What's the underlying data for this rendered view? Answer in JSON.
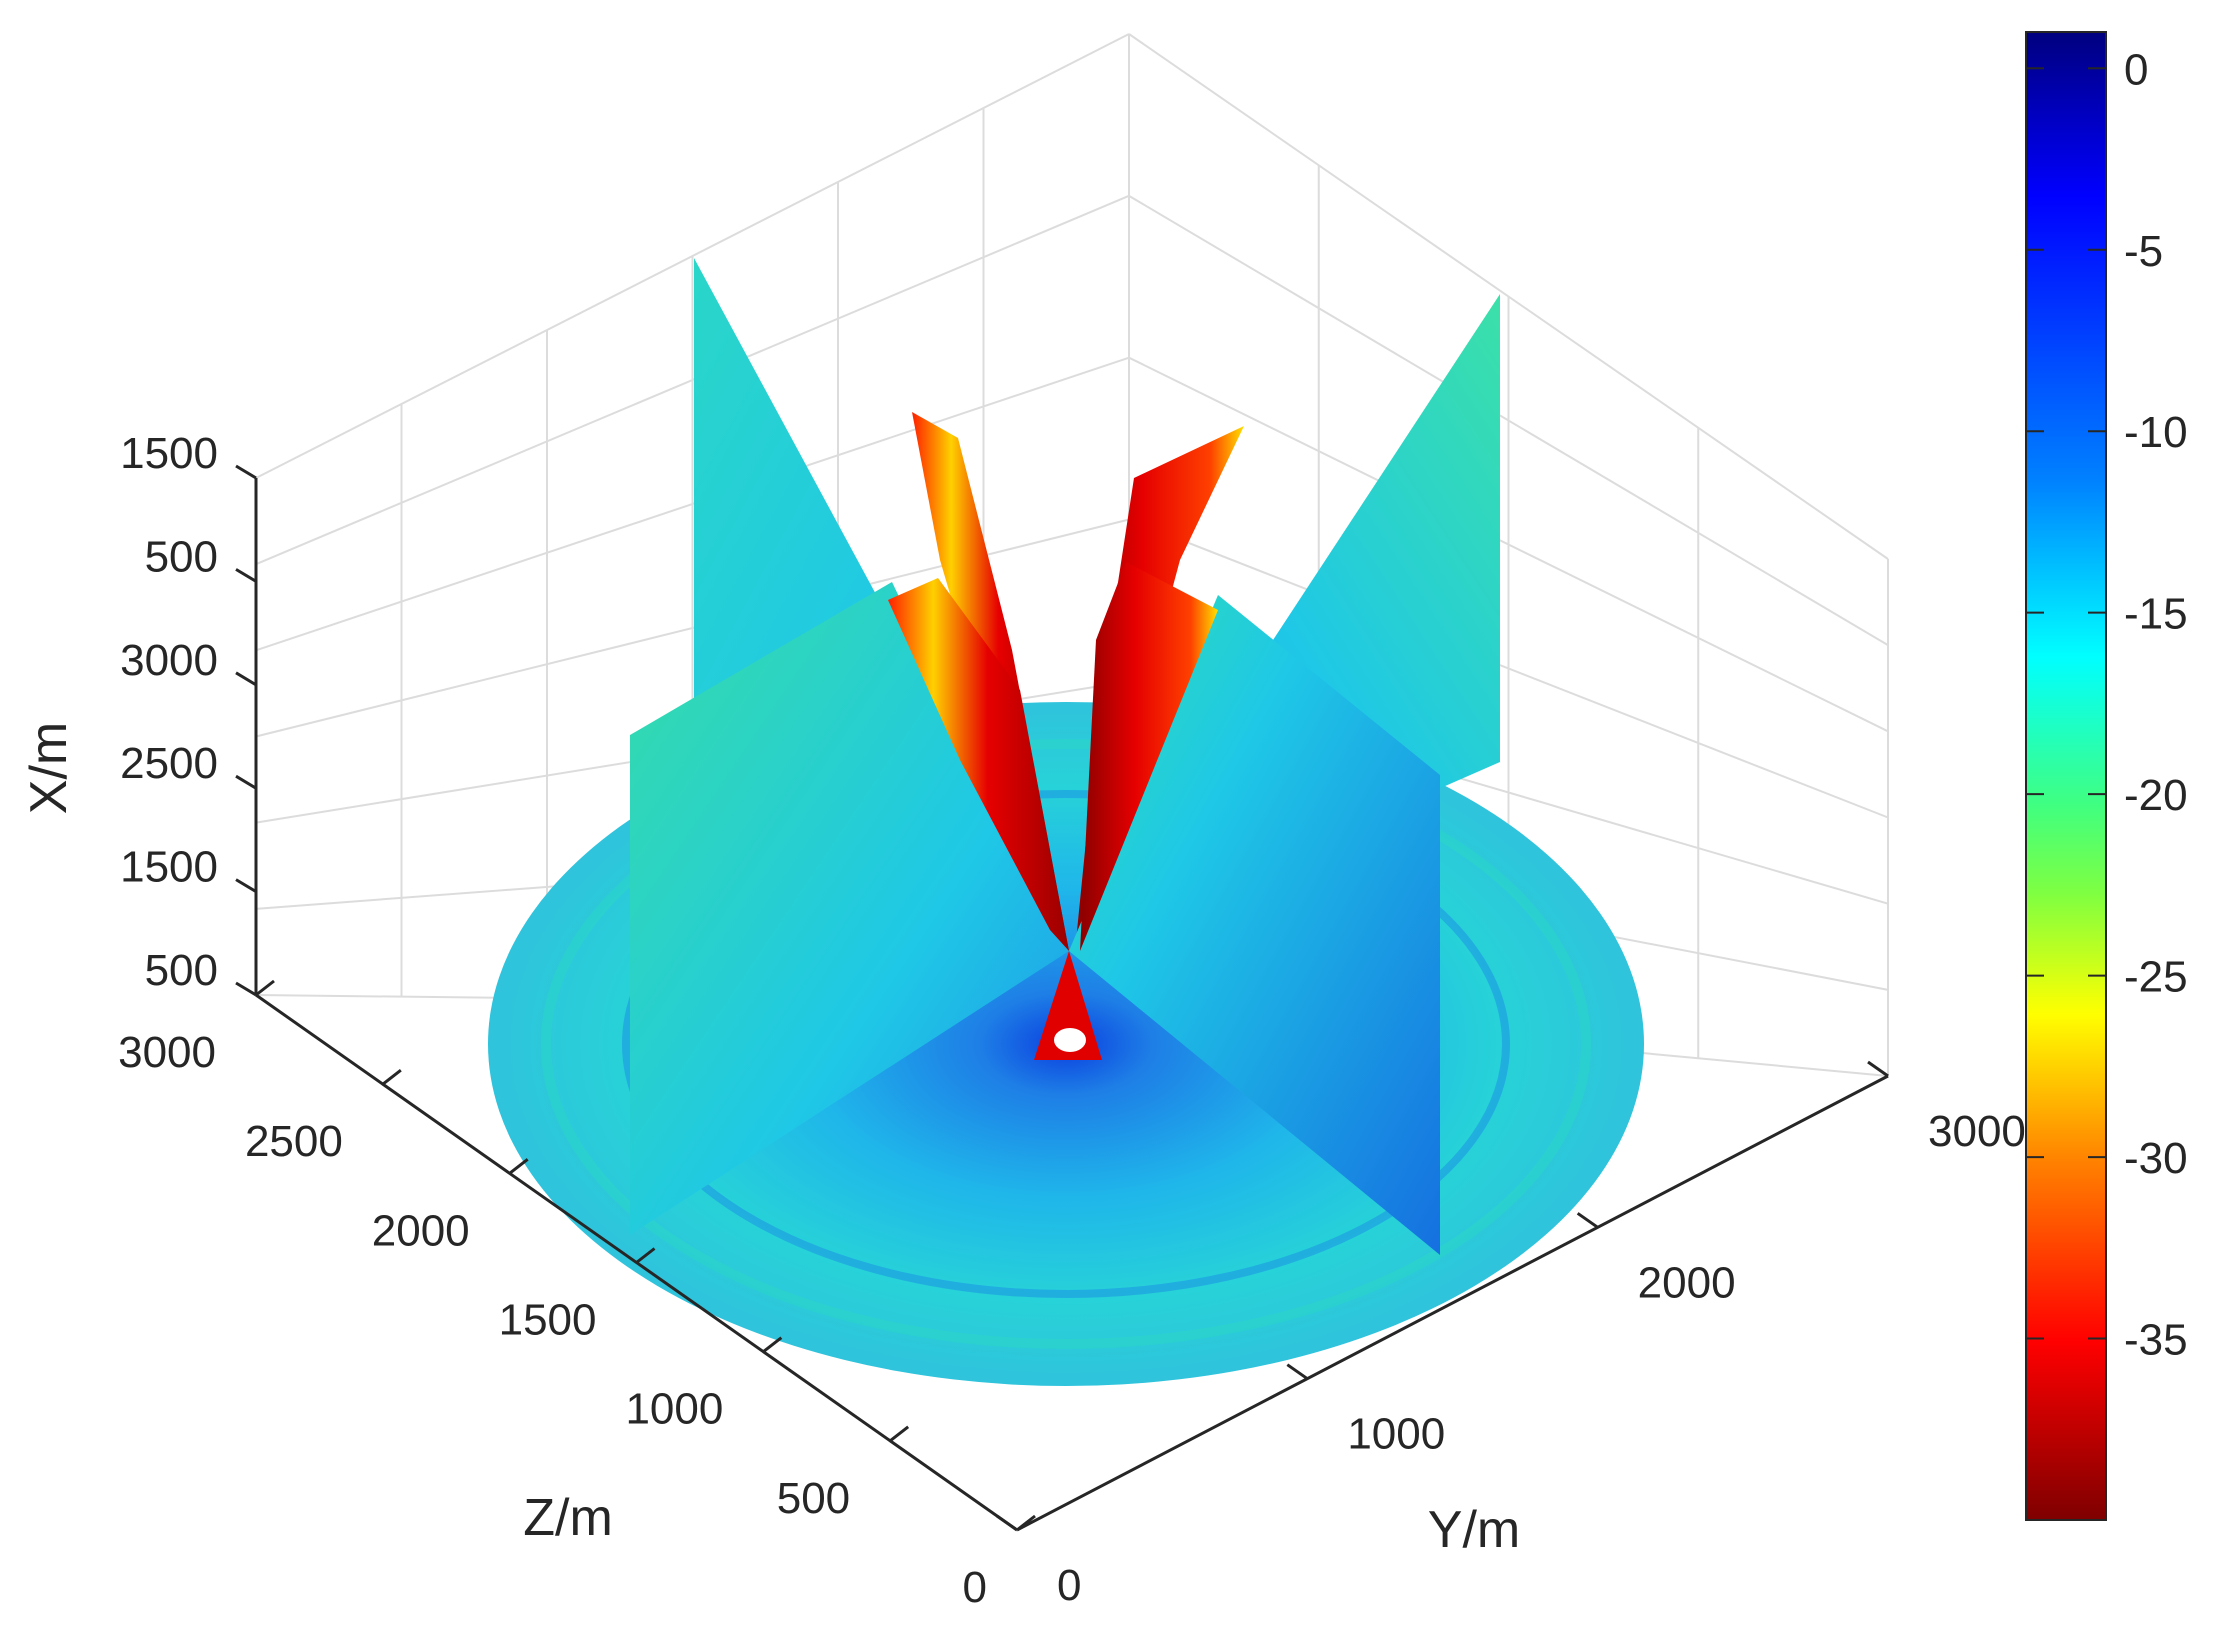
{
  "chart_data": {
    "type": "heatmap",
    "title": "",
    "xlabel": "X/m",
    "ylabel": "Y/m",
    "zlabel": "Z/m",
    "vertical_axis_ticks": [
      "1500",
      "500",
      "3000",
      "2500",
      "1500",
      "500"
    ],
    "z_axis_ticks": [
      "3000",
      "2500",
      "2000",
      "1500",
      "1000",
      "500",
      "0"
    ],
    "y_axis_ticks": [
      "0",
      "1000",
      "2000",
      "3000"
    ],
    "colorbar": {
      "ticks": [
        "0",
        "-5",
        "-10",
        "-15",
        "-20",
        "-25",
        "-30",
        "-35"
      ],
      "range": [
        -40,
        1
      ],
      "colormap": [
        "#7f0000",
        "#ff0000",
        "#ff8000",
        "#ffff00",
        "#80ff80",
        "#00ffff",
        "#0080ff",
        "#0000ff",
        "#00007f"
      ]
    },
    "grid": true,
    "colors": {
      "base": "#1fc8e6",
      "low": "#cc0000",
      "mid": "#1e7fe6"
    }
  }
}
